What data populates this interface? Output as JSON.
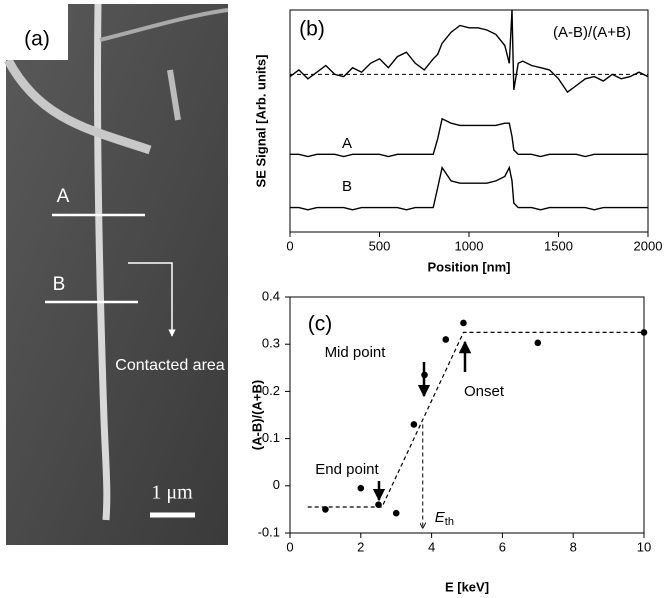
{
  "image_panel": {
    "label": "(a)",
    "line_a": "A",
    "line_b": "B",
    "note": "Contacted area",
    "scale": "1 μm"
  },
  "chart_data": [
    {
      "type": "line",
      "panel": "(b)",
      "xlabel": "Position [nm]",
      "ylabel": "SE Signal [Arb. units]",
      "xlim": [
        0,
        2000
      ],
      "xticks": [
        0,
        500,
        1000,
        1500,
        2000
      ],
      "ylim": [
        0,
        10
      ],
      "reference_line": 7.1,
      "x": [
        0,
        50,
        100,
        150,
        200,
        250,
        300,
        350,
        400,
        450,
        500,
        550,
        600,
        650,
        700,
        750,
        800,
        825,
        850,
        900,
        950,
        1000,
        1050,
        1100,
        1150,
        1200,
        1225,
        1240,
        1250,
        1275,
        1300,
        1350,
        1400,
        1450,
        1500,
        1550,
        1600,
        1650,
        1700,
        1750,
        1800,
        1850,
        1900,
        1950,
        2000
      ],
      "series": [
        {
          "name": "(A-B)/(A+B)",
          "color": "#000000",
          "values": [
            7.0,
            7.3,
            6.9,
            7.2,
            7.5,
            7.1,
            7.0,
            7.4,
            7.2,
            7.6,
            7.8,
            7.4,
            7.9,
            8.1,
            7.6,
            7.3,
            7.8,
            8.0,
            8.5,
            9.0,
            9.3,
            9.2,
            9.2,
            9.1,
            8.9,
            8.4,
            7.6,
            10.0,
            6.4,
            7.6,
            7.7,
            7.5,
            7.4,
            7.3,
            6.9,
            6.3,
            6.6,
            6.9,
            7.0,
            6.8,
            7.1,
            6.9,
            7.0,
            7.2,
            7.0
          ]
        },
        {
          "name": "A",
          "color": "#000000",
          "values": [
            3.5,
            3.5,
            3.4,
            3.5,
            3.5,
            3.5,
            3.4,
            3.5,
            3.5,
            3.5,
            3.5,
            3.4,
            3.5,
            3.5,
            3.5,
            3.5,
            3.5,
            4.2,
            5.1,
            4.9,
            4.8,
            4.8,
            4.8,
            4.8,
            4.8,
            4.9,
            4.9,
            4.3,
            3.7,
            3.5,
            3.5,
            3.5,
            3.4,
            3.5,
            3.5,
            3.5,
            3.5,
            3.4,
            3.5,
            3.5,
            3.5,
            3.5,
            3.5,
            3.5,
            3.5
          ]
        },
        {
          "name": "B",
          "color": "#000000",
          "values": [
            1.1,
            1.1,
            1.0,
            1.1,
            1.1,
            1.1,
            1.1,
            1.0,
            1.1,
            1.1,
            1.1,
            1.1,
            1.1,
            1.0,
            1.1,
            1.1,
            1.1,
            2.0,
            2.9,
            2.3,
            2.2,
            2.2,
            2.2,
            2.2,
            2.3,
            2.5,
            2.9,
            2.3,
            1.3,
            1.1,
            1.1,
            1.1,
            1.0,
            1.1,
            1.1,
            1.1,
            1.1,
            1.1,
            1.0,
            1.1,
            1.1,
            1.1,
            1.1,
            1.1,
            1.1
          ]
        }
      ]
    },
    {
      "type": "scatter",
      "panel": "(c)",
      "xlabel": "E [keV]",
      "ylabel": "(A-B)/(A+B)",
      "xlim": [
        0,
        10
      ],
      "xticks": [
        0,
        2,
        4,
        6,
        8,
        10
      ],
      "ylim": [
        -0.1,
        0.4
      ],
      "yticks": [
        -0.1,
        0,
        0.1,
        0.2,
        0.3,
        0.4
      ],
      "x": [
        1,
        2,
        2.5,
        3,
        3.5,
        3.8,
        4.4,
        4.9,
        7,
        10
      ],
      "values": [
        -0.05,
        -0.005,
        -0.04,
        -0.058,
        0.13,
        0.235,
        0.31,
        0.345,
        0.303,
        0.325
      ],
      "color": "#000000",
      "fit_x": [
        0.5,
        2.6,
        4.9,
        10
      ],
      "fit_values": [
        -0.045,
        -0.045,
        0.325,
        0.325
      ],
      "threshold_x": 3.75,
      "threshold_top": 0.13,
      "annotations": [
        "Mid point",
        "End point",
        "Onset"
      ],
      "threshold_label": {
        "main": "E",
        "sub": "th"
      }
    }
  ]
}
